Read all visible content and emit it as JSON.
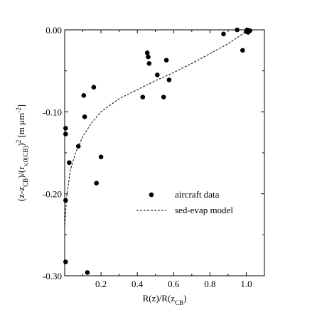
{
  "chart_data": {
    "type": "scatter",
    "xlabel": {
      "base": "R(z)/R(z",
      "sub": "CB",
      "tail": ")"
    },
    "ylabel": {
      "parts": [
        {
          "text": "(z-z",
          "style": "normal"
        },
        {
          "text": "CB",
          "style": "sub"
        },
        {
          "text": ")/(r",
          "style": "normal"
        },
        {
          "text": "v,0(CB)",
          "style": "sub"
        },
        {
          "text": ")",
          "style": "normal"
        },
        {
          "text": "2",
          "style": "sup"
        },
        {
          "text": " [m μm",
          "style": "normal"
        },
        {
          "text": "-2",
          "style": "sup"
        },
        {
          "text": "]",
          "style": "normal"
        }
      ]
    },
    "xlim": [
      0,
      1.1
    ],
    "ylim": [
      -0.3,
      0.0
    ],
    "x_ticks": [
      0.2,
      0.4,
      0.6,
      0.8,
      1.0
    ],
    "x_tick_labels": [
      "0.2",
      "0.4",
      "0.6",
      "0.8",
      "1.0"
    ],
    "y_ticks": [
      0.0,
      -0.1,
      -0.2,
      -0.3
    ],
    "y_tick_labels": [
      "0.00",
      "-0.10",
      "-0.20",
      "-0.30"
    ],
    "grid": false,
    "legend_position": "center-right",
    "series": [
      {
        "name": "aircraft data",
        "kind": "scatter",
        "color": "#000000",
        "points": [
          [
            0.005,
            -0.12
          ],
          [
            0.005,
            -0.127
          ],
          [
            0.005,
            -0.208
          ],
          [
            0.005,
            -0.283
          ],
          [
            0.025,
            -0.162
          ],
          [
            0.075,
            -0.142
          ],
          [
            0.105,
            -0.08
          ],
          [
            0.11,
            -0.106
          ],
          [
            0.125,
            -0.296
          ],
          [
            0.16,
            -0.07
          ],
          [
            0.175,
            -0.187
          ],
          [
            0.2,
            -0.155
          ],
          [
            0.43,
            -0.082
          ],
          [
            0.455,
            -0.028
          ],
          [
            0.46,
            -0.033
          ],
          [
            0.465,
            -0.041
          ],
          [
            0.51,
            -0.055
          ],
          [
            0.545,
            -0.082
          ],
          [
            0.56,
            -0.037
          ],
          [
            0.575,
            -0.061
          ],
          [
            0.875,
            -0.005
          ],
          [
            0.95,
            0.0
          ],
          [
            0.98,
            -0.025
          ],
          [
            1.0,
            -0.002
          ],
          [
            1.005,
            0.0
          ],
          [
            1.01,
            -0.003
          ],
          [
            1.02,
            -0.001
          ]
        ]
      },
      {
        "name": "sed-evap model",
        "kind": "line",
        "style": "dashed",
        "color": "#000000",
        "points": [
          [
            0.0,
            -0.242
          ],
          [
            0.01,
            -0.205
          ],
          [
            0.03,
            -0.172
          ],
          [
            0.06,
            -0.15
          ],
          [
            0.1,
            -0.13
          ],
          [
            0.15,
            -0.113
          ],
          [
            0.2,
            -0.1
          ],
          [
            0.3,
            -0.084
          ],
          [
            0.4,
            -0.073
          ],
          [
            0.5,
            -0.062
          ],
          [
            0.6,
            -0.052
          ],
          [
            0.7,
            -0.041
          ],
          [
            0.8,
            -0.029
          ],
          [
            0.9,
            -0.017
          ],
          [
            1.0,
            -0.002
          ]
        ]
      }
    ]
  }
}
